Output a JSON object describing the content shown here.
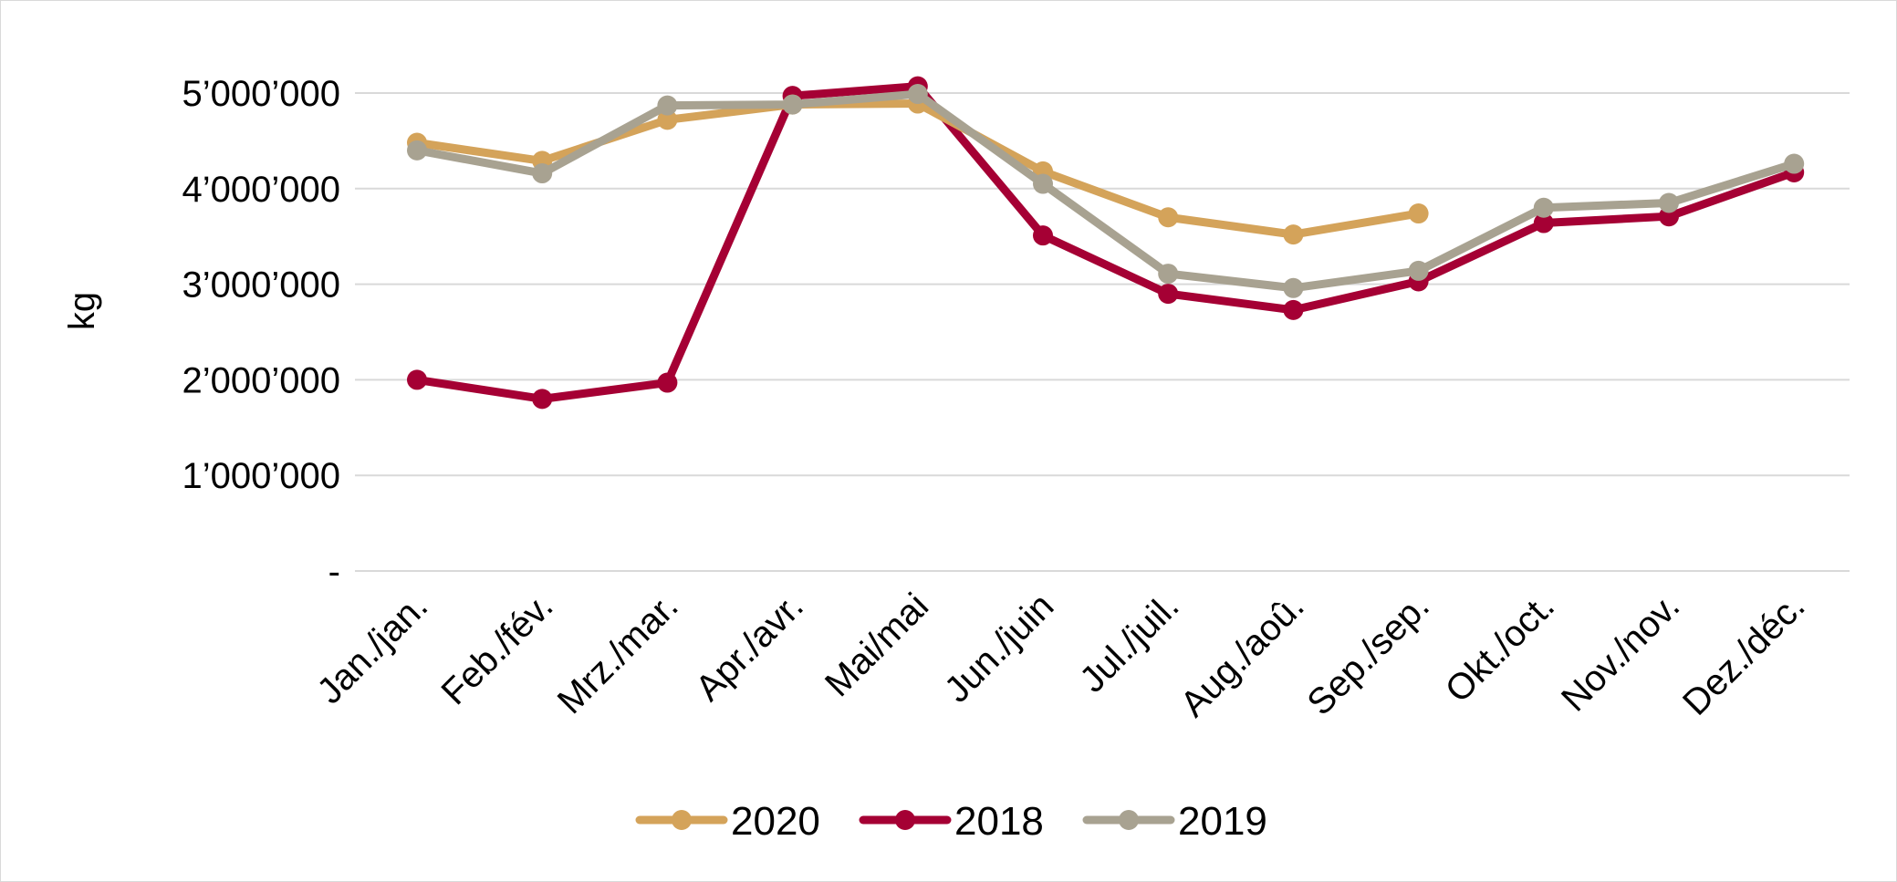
{
  "chart_data": {
    "type": "line",
    "title": "",
    "xlabel": "",
    "ylabel": "kg",
    "ylim": [
      0,
      5000000
    ],
    "yticks": [
      {
        "value": 0,
        "label": "-"
      },
      {
        "value": 1000000,
        "label": "1’000’000"
      },
      {
        "value": 2000000,
        "label": "2’000’000"
      },
      {
        "value": 3000000,
        "label": "3’000’000"
      },
      {
        "value": 4000000,
        "label": "4’000’000"
      },
      {
        "value": 5000000,
        "label": "5’000’000"
      }
    ],
    "grid": true,
    "legend": "bottom",
    "categories": [
      "Jan./jan.",
      "Feb./fév.",
      "Mrz./mar.",
      "Apr./avr.",
      "Mai/mai",
      "Jun./juin",
      "Jul./juil.",
      "Aug./aoû.",
      "Sep./sep.",
      "Okt./oct.",
      "Nov./nov.",
      "Dez./déc."
    ],
    "series": [
      {
        "name": "2020",
        "color": "#d4a35a",
        "values": [
          4480000,
          4290000,
          4720000,
          4880000,
          4890000,
          4180000,
          3700000,
          3520000,
          3740000,
          null,
          null,
          null
        ]
      },
      {
        "name": "2018",
        "color": "#a50034",
        "values": [
          2000000,
          1800000,
          1970000,
          4970000,
          5070000,
          3510000,
          2900000,
          2730000,
          3030000,
          3640000,
          3710000,
          4170000
        ]
      },
      {
        "name": "2019",
        "color": "#a8a291",
        "values": [
          4400000,
          4160000,
          4870000,
          4880000,
          4990000,
          4050000,
          3110000,
          2960000,
          3140000,
          3800000,
          3850000,
          4260000
        ]
      }
    ]
  }
}
